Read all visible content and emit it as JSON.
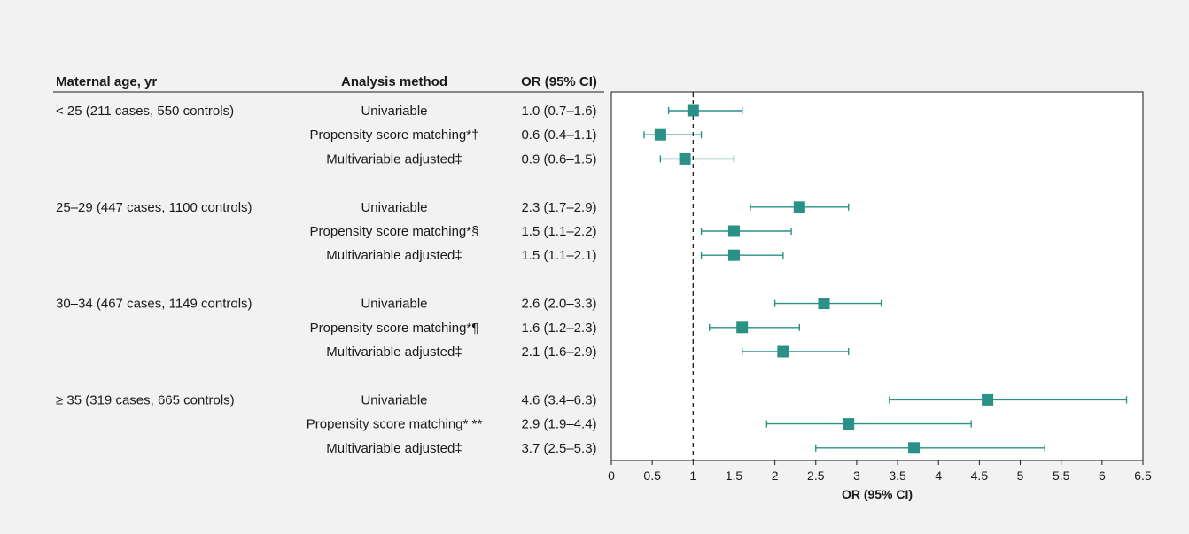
{
  "colors": {
    "background": "#f2f2f2",
    "plot_background": "#ffffff",
    "marker": "#2a9186",
    "text": "#1a1a1a",
    "reference_line": "#1a1a1a"
  },
  "table": {
    "headers": {
      "group": "Maternal age, yr",
      "method": "Analysis method",
      "estimate": "OR (95% CI)"
    },
    "groups": [
      {
        "label": "< 25 (211 cases, 550 controls)",
        "rows": [
          {
            "method": "Univariable",
            "text": "1.0 (0.7–1.6)",
            "or": 1.0,
            "lo": 0.7,
            "hi": 1.6
          },
          {
            "method": "Propensity score matching*†",
            "text": "0.6 (0.4–1.1)",
            "or": 0.6,
            "lo": 0.4,
            "hi": 1.1
          },
          {
            "method": "Multivariable adjusted‡",
            "text": "0.9 (0.6–1.5)",
            "or": 0.9,
            "lo": 0.6,
            "hi": 1.5
          }
        ]
      },
      {
        "label": "25–29 (447 cases, 1100 controls)",
        "rows": [
          {
            "method": "Univariable",
            "text": "2.3 (1.7–2.9)",
            "or": 2.3,
            "lo": 1.7,
            "hi": 2.9
          },
          {
            "method": "Propensity score matching*§",
            "text": "1.5 (1.1–2.2)",
            "or": 1.5,
            "lo": 1.1,
            "hi": 2.2
          },
          {
            "method": "Multivariable adjusted‡",
            "text": "1.5 (1.1–2.1)",
            "or": 1.5,
            "lo": 1.1,
            "hi": 2.1
          }
        ]
      },
      {
        "label": "30–34 (467 cases, 1149 controls)",
        "rows": [
          {
            "method": "Univariable",
            "text": "2.6 (2.0–3.3)",
            "or": 2.6,
            "lo": 2.0,
            "hi": 3.3
          },
          {
            "method": "Propensity score matching*¶",
            "text": "1.6 (1.2–2.3)",
            "or": 1.6,
            "lo": 1.2,
            "hi": 2.3
          },
          {
            "method": "Multivariable adjusted‡",
            "text": "2.1 (1.6–2.9)",
            "or": 2.1,
            "lo": 1.6,
            "hi": 2.9
          }
        ]
      },
      {
        "label": "≥ 35 (319 cases, 665 controls)",
        "rows": [
          {
            "method": "Univariable",
            "text": "4.6 (3.4–6.3)",
            "or": 4.6,
            "lo": 3.4,
            "hi": 6.3
          },
          {
            "method": "Propensity score matching* **",
            "text": "2.9 (1.9–4.4)",
            "or": 2.9,
            "lo": 1.9,
            "hi": 4.4
          },
          {
            "method": "Multivariable adjusted‡",
            "text": "3.7 (2.5–5.3)",
            "or": 3.7,
            "lo": 2.5,
            "hi": 5.3
          }
        ]
      }
    ]
  },
  "chart_data": {
    "type": "forest",
    "title": "",
    "xlabel": "OR (95% CI)",
    "xlim": [
      0,
      6.5
    ],
    "xticks": [
      0,
      0.5,
      1,
      1.5,
      2,
      2.5,
      3,
      3.5,
      4,
      4.5,
      5,
      5.5,
      6,
      6.5
    ],
    "xtick_labels": [
      "0",
      "0.5",
      "1",
      "1.5",
      "2",
      "2.5",
      "3",
      "3.5",
      "4",
      "4.5",
      "5",
      "5.5",
      "6",
      "6.5"
    ],
    "reference_line": 1,
    "reference_line_style": "dashed",
    "grid": false
  }
}
